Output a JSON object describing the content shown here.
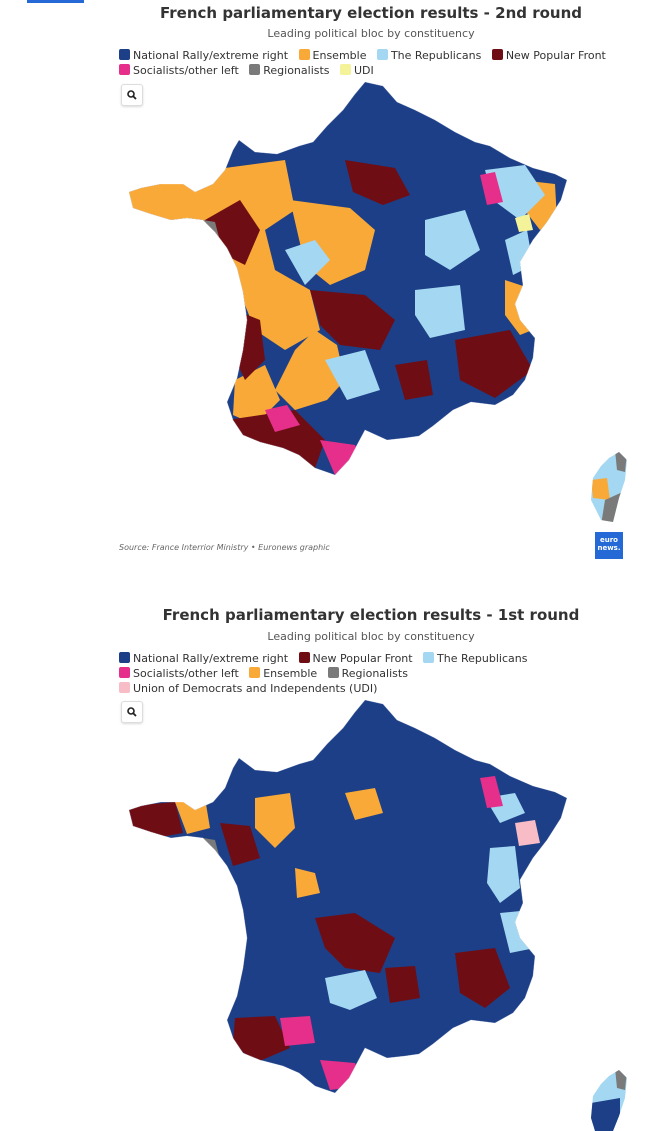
{
  "round2": {
    "title": "French parliamentary election results - 2nd round",
    "subtitle": "Leading political bloc by constituency",
    "legend": [
      [
        {
          "label": "National Rally/extreme right",
          "color": "#1c3f87"
        },
        {
          "label": "Ensemble",
          "color": "#f9a937"
        },
        {
          "label": "The Republicans",
          "color": "#a3d7f2"
        },
        {
          "label": "New Popular Front",
          "color": "#6f0d14"
        }
      ],
      [
        {
          "label": "Socialists/other left",
          "color": "#e62f8a"
        },
        {
          "label": "Regionalists",
          "color": "#7a7a7a"
        },
        {
          "label": "UDI",
          "color": "#f5f39a"
        }
      ]
    ],
    "source": "Source: France Interrior Ministry • Euronews graphic",
    "logo_line1": "euro",
    "logo_line2": "news."
  },
  "round1": {
    "title": "French parliamentary election results - 1st round",
    "subtitle": "Leading political bloc by constituency",
    "legend": [
      [
        {
          "label": "National Rally/extreme right",
          "color": "#1c3f87"
        },
        {
          "label": "New Popular Front",
          "color": "#6f0d14"
        },
        {
          "label": "The Republicans",
          "color": "#a3d7f2"
        }
      ],
      [
        {
          "label": "Socialists/other left",
          "color": "#e62f8a"
        },
        {
          "label": "Ensemble",
          "color": "#f9a937"
        },
        {
          "label": "Regionalists",
          "color": "#7a7a7a"
        }
      ],
      [
        {
          "label": "Union of Democrats and Independents (UDI)",
          "color": "#f7bcc5"
        }
      ]
    ]
  },
  "icons": {
    "zoom": "magnifier-icon"
  }
}
